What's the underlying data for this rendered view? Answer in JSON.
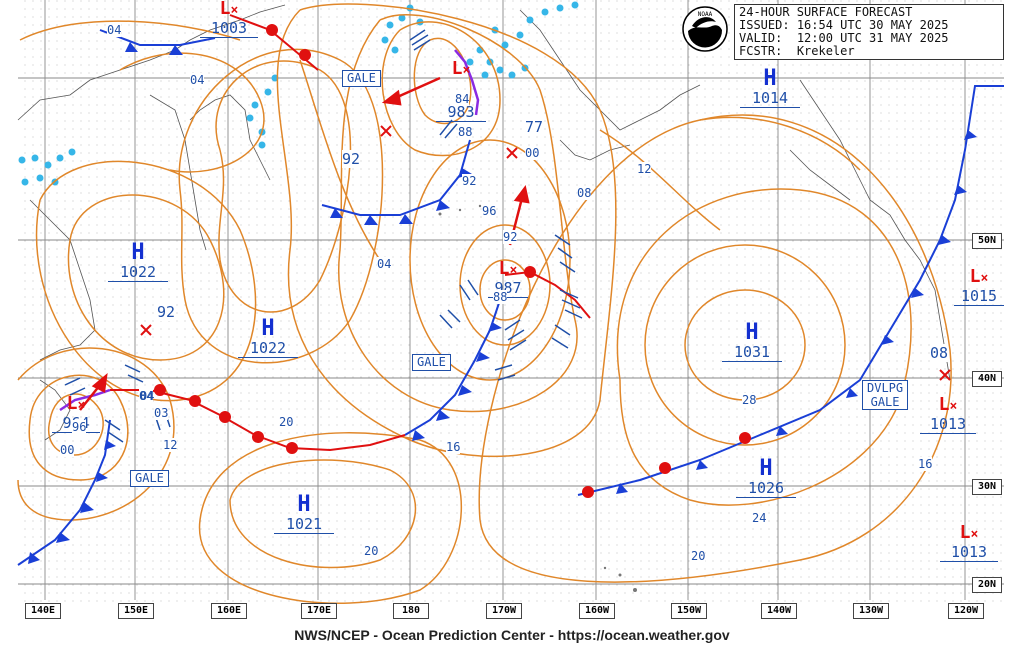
{
  "header": {
    "title_line": "24-HOUR SURFACE FORECAST",
    "issued_label": "ISSUED:",
    "issued_value": "16:54 UTC 30 MAY 2025",
    "valid_label": "VALID:",
    "valid_value": "12:00 UTC 31 MAY 2025",
    "forecaster_label": "FCSTR:",
    "forecaster_value": "Krekeler",
    "logo_icon": "noaa-logo-icon"
  },
  "footer": {
    "credit": "NWS/NCEP - Ocean Prediction Center - https://ocean.weather.gov"
  },
  "longitude_labels": [
    "140E",
    "150E",
    "160E",
    "170E",
    "180",
    "170W",
    "160W",
    "150W",
    "140W",
    "130W",
    "120W"
  ],
  "latitude_labels": [
    "50N",
    "40N",
    "30N",
    "20N"
  ],
  "highs": [
    {
      "label": "H",
      "value": "1022"
    },
    {
      "label": "H",
      "value": "1022"
    },
    {
      "label": "H",
      "value": "1021"
    },
    {
      "label": "H",
      "value": "1031"
    },
    {
      "label": "H",
      "value": "1026"
    },
    {
      "label": "H",
      "value": "1014"
    }
  ],
  "lows": [
    {
      "value": "1003"
    },
    {
      "value": "983"
    },
    {
      "value": "987"
    },
    {
      "value": "964"
    },
    {
      "value": "1015"
    },
    {
      "value": "1013"
    },
    {
      "value": "1013"
    }
  ],
  "warnings": [
    "GALE",
    "GALE",
    "GALE",
    "DVLPG",
    "GALE"
  ],
  "isobar_labels": [
    "04",
    "04",
    "92",
    "84",
    "88",
    "77",
    "00",
    "08",
    "12",
    "92",
    "96",
    "04",
    "92",
    "88",
    "20",
    "16",
    "28",
    "20",
    "24",
    "16",
    "08",
    "04",
    "00",
    "12",
    "20",
    "96",
    "04",
    "03"
  ],
  "colors": {
    "isobar": "#e0872a",
    "cold_front": "#1a3fd6",
    "warm_front": "#e01010",
    "occluded": "#8a2be2",
    "ice": "#36b6e8",
    "label_text": "#1f4fa8",
    "grid": "#888888"
  }
}
